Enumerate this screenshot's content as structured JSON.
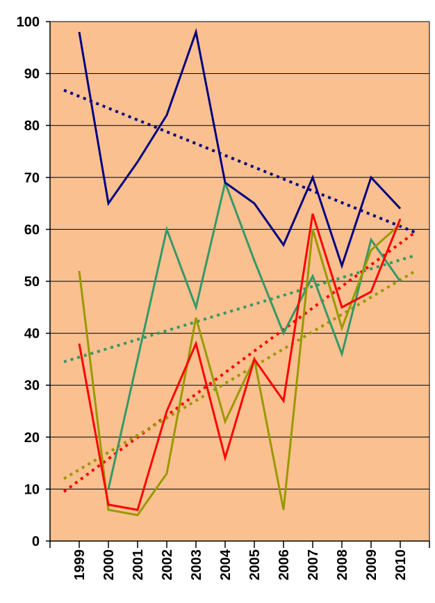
{
  "chart_data": {
    "type": "line",
    "title": "",
    "xlabel": "",
    "ylabel": "",
    "ylim": [
      0,
      100
    ],
    "y_ticks": [
      0,
      10,
      20,
      30,
      40,
      50,
      60,
      70,
      80,
      90,
      100
    ],
    "grid": true,
    "background": "#FAC090",
    "categories": [
      "1999",
      "2000",
      "2001",
      "2002",
      "2003",
      "2004",
      "2005",
      "2006",
      "2007",
      "2008",
      "2009",
      "2010"
    ],
    "series": [
      {
        "name": "navy",
        "color": "#000080",
        "values": [
          98,
          65,
          73,
          82,
          98,
          69,
          65,
          57,
          70,
          53,
          70,
          64
        ],
        "trend": [
          86.8,
          59.4
        ]
      },
      {
        "name": "teal",
        "color": "#339966",
        "values": [
          null,
          10,
          35,
          60,
          45,
          69,
          54,
          40,
          51,
          36,
          58,
          50
        ],
        "trend": [
          34.5,
          55.0
        ]
      },
      {
        "name": "red",
        "color": "#FF0000",
        "values": [
          38,
          7,
          6,
          25,
          38,
          16,
          35,
          27,
          63,
          45,
          48,
          62
        ],
        "trend": [
          9.5,
          59.5
        ]
      },
      {
        "name": "olive",
        "color": "#999900",
        "values": [
          52,
          6,
          5,
          13,
          43,
          23,
          35,
          6,
          60,
          41,
          56,
          61
        ],
        "trend": [
          12.0,
          52.0
        ]
      }
    ]
  }
}
